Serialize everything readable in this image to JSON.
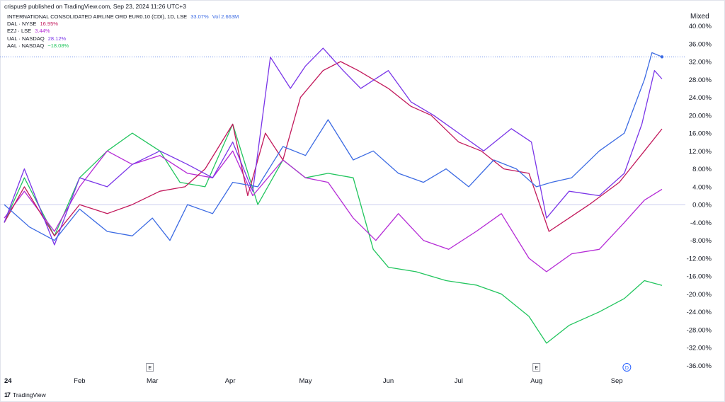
{
  "header": {
    "published_line": "crispus9 published on TradingView.com, Sep 23, 2024 11:26 UTC+3"
  },
  "scale_mode": "Mixed",
  "footer": {
    "brand": "TradingView",
    "logo_glyph": "17"
  },
  "markers": [
    {
      "label": "E",
      "month": "Mar"
    },
    {
      "label": "E",
      "month": "Aug"
    },
    {
      "label": "D",
      "month": "Sep"
    }
  ],
  "colors": {
    "IAG": "#3c6be3",
    "DAL": "#c2185b",
    "EZJ": "#b52bd6",
    "UAL": "#7a35e8",
    "AAL": "#22c55e",
    "zero_line": "#b8bde8"
  },
  "chart_data": {
    "type": "line",
    "x_type": "date",
    "x_start": "2024-01-02",
    "x_end": "2024-09-20",
    "x_ticks": [
      "24",
      "Feb",
      "Mar",
      "Apr",
      "May",
      "Jun",
      "Jul",
      "Aug",
      "Sep"
    ],
    "ylabel": "",
    "ylim": [
      -36,
      40
    ],
    "y_ticks": [
      "40.00%",
      "36.00%",
      "32.00%",
      "28.00%",
      "24.00%",
      "20.00%",
      "16.00%",
      "12.00%",
      "8.00%",
      "4.00%",
      "0.00%",
      "-4.00%",
      "-8.00%",
      "-12.00%",
      "-16.00%",
      "-20.00%",
      "-24.00%",
      "-28.00%",
      "-32.00%",
      "-36.00%"
    ],
    "legend_position": "top-left",
    "grid": false,
    "series": [
      {
        "key": "IAG",
        "name": "INTERNATIONAL CONSOLIDATED AIRLINE ORD EUR0.10 (CDI), 1D, LSE",
        "last_label": "33.07%",
        "extra_label": "Vol 2.663M",
        "x": [
          "2024-01-02",
          "2024-01-12",
          "2024-01-22",
          "2024-02-01",
          "2024-02-12",
          "2024-02-22",
          "2024-03-01",
          "2024-03-08",
          "2024-03-15",
          "2024-03-25",
          "2024-04-02",
          "2024-04-12",
          "2024-04-22",
          "2024-05-01",
          "2024-05-10",
          "2024-05-20",
          "2024-05-28",
          "2024-06-07",
          "2024-06-17",
          "2024-06-26",
          "2024-07-05",
          "2024-07-15",
          "2024-07-24",
          "2024-08-01",
          "2024-08-07",
          "2024-08-15",
          "2024-08-26",
          "2024-09-05",
          "2024-09-13",
          "2024-09-16",
          "2024-09-20"
        ],
        "y": [
          0,
          -5,
          -8,
          -1,
          -6,
          -7,
          -3,
          -8,
          0,
          -2,
          5,
          4,
          13,
          11,
          19,
          10,
          12,
          7,
          5,
          8,
          4,
          10,
          8,
          4,
          5,
          6,
          12,
          16,
          28,
          34,
          33.07
        ]
      },
      {
        "key": "DAL",
        "name": "DAL · NYSE",
        "last_label": "16.95%",
        "x": [
          "2024-01-02",
          "2024-01-10",
          "2024-01-22",
          "2024-02-01",
          "2024-02-12",
          "2024-02-22",
          "2024-03-04",
          "2024-03-14",
          "2024-03-22",
          "2024-04-02",
          "2024-04-08",
          "2024-04-15",
          "2024-04-22",
          "2024-04-29",
          "2024-05-08",
          "2024-05-15",
          "2024-05-22",
          "2024-06-03",
          "2024-06-12",
          "2024-06-20",
          "2024-07-01",
          "2024-07-10",
          "2024-07-19",
          "2024-07-29",
          "2024-08-06",
          "2024-08-14",
          "2024-08-22",
          "2024-09-03",
          "2024-09-13",
          "2024-09-20"
        ],
        "y": [
          -4,
          4,
          -7,
          0,
          -2,
          0,
          3,
          4,
          8,
          18,
          2,
          16,
          10,
          24,
          30,
          32,
          30,
          26,
          22,
          20,
          14,
          12,
          8,
          7,
          -6,
          -3,
          0,
          5,
          12,
          16.95
        ]
      },
      {
        "key": "EZJ",
        "name": "EZJ · LSE",
        "last_label": "3.44%",
        "x": [
          "2024-01-02",
          "2024-01-10",
          "2024-01-22",
          "2024-02-01",
          "2024-02-12",
          "2024-02-22",
          "2024-03-04",
          "2024-03-15",
          "2024-03-25",
          "2024-04-02",
          "2024-04-10",
          "2024-04-22",
          "2024-05-01",
          "2024-05-10",
          "2024-05-20",
          "2024-05-29",
          "2024-06-07",
          "2024-06-17",
          "2024-06-27",
          "2024-07-08",
          "2024-07-18",
          "2024-07-29",
          "2024-08-05",
          "2024-08-15",
          "2024-08-26",
          "2024-09-05",
          "2024-09-13",
          "2024-09-20"
        ],
        "y": [
          -3,
          3,
          -6,
          4,
          12,
          9,
          11,
          7,
          6,
          12,
          2,
          10,
          6,
          5,
          -3,
          -8,
          -2,
          -8,
          -10,
          -6,
          -2,
          -12,
          -15,
          -11,
          -10,
          -4,
          1,
          3.44
        ]
      },
      {
        "key": "UAL",
        "name": "UAL · NASDAQ",
        "last_label": "28.12%",
        "x": [
          "2024-01-02",
          "2024-01-10",
          "2024-01-22",
          "2024-02-01",
          "2024-02-12",
          "2024-02-22",
          "2024-03-04",
          "2024-03-15",
          "2024-03-25",
          "2024-04-02",
          "2024-04-10",
          "2024-04-17",
          "2024-04-25",
          "2024-05-01",
          "2024-05-08",
          "2024-05-16",
          "2024-05-23",
          "2024-06-03",
          "2024-06-12",
          "2024-06-21",
          "2024-07-01",
          "2024-07-11",
          "2024-07-22",
          "2024-07-30",
          "2024-08-05",
          "2024-08-14",
          "2024-08-26",
          "2024-09-05",
          "2024-09-12",
          "2024-09-17",
          "2024-09-20"
        ],
        "y": [
          -4,
          8,
          -9,
          6,
          4,
          9,
          12,
          9,
          6,
          14,
          3,
          33,
          26,
          31,
          35,
          30,
          26,
          30,
          23,
          20,
          16,
          12,
          17,
          14,
          -3,
          3,
          2,
          7,
          18,
          30,
          28.12
        ]
      },
      {
        "key": "AAL",
        "name": "AAL · NASDAQ",
        "last_label": "−18.08%",
        "x": [
          "2024-01-02",
          "2024-01-10",
          "2024-01-22",
          "2024-02-01",
          "2024-02-12",
          "2024-02-22",
          "2024-03-04",
          "2024-03-12",
          "2024-03-22",
          "2024-04-02",
          "2024-04-12",
          "2024-04-22",
          "2024-05-01",
          "2024-05-10",
          "2024-05-20",
          "2024-05-28",
          "2024-06-03",
          "2024-06-14",
          "2024-06-26",
          "2024-07-08",
          "2024-07-18",
          "2024-07-29",
          "2024-08-05",
          "2024-08-14",
          "2024-08-26",
          "2024-09-05",
          "2024-09-13",
          "2024-09-20"
        ],
        "y": [
          -4,
          6,
          -7,
          6,
          12,
          16,
          12,
          5,
          4,
          18,
          0,
          10,
          6,
          7,
          6,
          -10,
          -14,
          -15,
          -17,
          -18,
          -20,
          -25,
          -31,
          -27,
          -24,
          -21,
          -17,
          -18.08
        ]
      }
    ]
  }
}
